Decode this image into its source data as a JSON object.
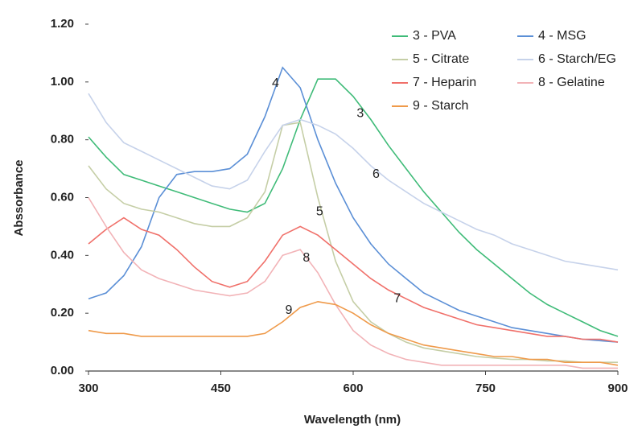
{
  "chart_data": {
    "type": "line",
    "xlabel": "Wavelength (nm)",
    "ylabel": "Abssorbance",
    "x": [
      300,
      320,
      340,
      360,
      380,
      400,
      420,
      440,
      460,
      480,
      500,
      520,
      540,
      560,
      580,
      600,
      620,
      640,
      660,
      680,
      700,
      720,
      740,
      760,
      780,
      800,
      820,
      840,
      860,
      880,
      900
    ],
    "series": [
      {
        "name": "3 - PVA",
        "color": "#3fbb78",
        "values": [
          0.81,
          0.74,
          0.68,
          0.66,
          0.64,
          0.62,
          0.6,
          0.58,
          0.56,
          0.55,
          0.58,
          0.7,
          0.87,
          1.01,
          1.01,
          0.95,
          0.87,
          0.78,
          0.7,
          0.62,
          0.55,
          0.48,
          0.42,
          0.37,
          0.32,
          0.27,
          0.23,
          0.2,
          0.17,
          0.14,
          0.12
        ]
      },
      {
        "name": "4 - MSG",
        "color": "#5b8fd6",
        "values": [
          0.25,
          0.27,
          0.33,
          0.43,
          0.6,
          0.68,
          0.69,
          0.69,
          0.7,
          0.75,
          0.88,
          1.05,
          0.98,
          0.8,
          0.65,
          0.53,
          0.44,
          0.37,
          0.32,
          0.27,
          0.24,
          0.21,
          0.19,
          0.17,
          0.15,
          0.14,
          0.13,
          0.12,
          0.11,
          0.105,
          0.1
        ]
      },
      {
        "name": "5 - Citrate",
        "color": "#c5cea6",
        "values": [
          0.71,
          0.63,
          0.58,
          0.56,
          0.55,
          0.53,
          0.51,
          0.5,
          0.5,
          0.53,
          0.62,
          0.85,
          0.86,
          0.6,
          0.38,
          0.24,
          0.17,
          0.13,
          0.1,
          0.08,
          0.07,
          0.06,
          0.05,
          0.045,
          0.04,
          0.04,
          0.035,
          0.035,
          0.03,
          0.03,
          0.03
        ]
      },
      {
        "name": "6 - Starch/EG",
        "color": "#c6d2ea",
        "values": [
          0.96,
          0.86,
          0.79,
          0.76,
          0.73,
          0.7,
          0.67,
          0.64,
          0.63,
          0.66,
          0.76,
          0.85,
          0.87,
          0.85,
          0.82,
          0.77,
          0.71,
          0.66,
          0.62,
          0.58,
          0.55,
          0.52,
          0.49,
          0.47,
          0.44,
          0.42,
          0.4,
          0.38,
          0.37,
          0.36,
          0.35
        ]
      },
      {
        "name": "7 - Heparin",
        "color": "#f0706a",
        "values": [
          0.44,
          0.49,
          0.53,
          0.49,
          0.47,
          0.42,
          0.36,
          0.31,
          0.29,
          0.31,
          0.38,
          0.47,
          0.5,
          0.47,
          0.42,
          0.37,
          0.32,
          0.28,
          0.25,
          0.22,
          0.2,
          0.18,
          0.16,
          0.15,
          0.14,
          0.13,
          0.12,
          0.12,
          0.11,
          0.11,
          0.1
        ]
      },
      {
        "name": "8 - Gelatine",
        "color": "#f2b3b7",
        "values": [
          0.6,
          0.5,
          0.41,
          0.35,
          0.32,
          0.3,
          0.28,
          0.27,
          0.26,
          0.27,
          0.31,
          0.4,
          0.42,
          0.34,
          0.23,
          0.14,
          0.09,
          0.06,
          0.04,
          0.03,
          0.02,
          0.02,
          0.02,
          0.02,
          0.02,
          0.02,
          0.02,
          0.02,
          0.01,
          0.01,
          0.01
        ]
      },
      {
        "name": "9 - Starch",
        "color": "#ef9a4a",
        "values": [
          0.14,
          0.13,
          0.13,
          0.12,
          0.12,
          0.12,
          0.12,
          0.12,
          0.12,
          0.12,
          0.13,
          0.17,
          0.22,
          0.24,
          0.23,
          0.2,
          0.16,
          0.13,
          0.11,
          0.09,
          0.08,
          0.07,
          0.06,
          0.05,
          0.05,
          0.04,
          0.04,
          0.03,
          0.03,
          0.03,
          0.02
        ]
      }
    ],
    "annotations": [
      {
        "text": "3",
        "x": 608,
        "y": 0.89
      },
      {
        "text": "4",
        "x": 512,
        "y": 0.995
      },
      {
        "text": "6",
        "x": 626,
        "y": 0.68
      },
      {
        "text": "5",
        "x": 562,
        "y": 0.55
      },
      {
        "text": "8",
        "x": 547,
        "y": 0.39
      },
      {
        "text": "7",
        "x": 650,
        "y": 0.25
      },
      {
        "text": "9",
        "x": 527,
        "y": 0.21
      }
    ],
    "xlim": [
      300,
      900
    ],
    "xticks": [
      300,
      450,
      600,
      750,
      900
    ],
    "ylim": [
      0,
      1.2
    ],
    "yticks": [
      {
        "value": 0,
        "label": "0.00"
      },
      {
        "value": 0.2,
        "label": "0.20"
      },
      {
        "value": 0.4,
        "label": "0.40"
      },
      {
        "value": 0.6,
        "label": "0.60"
      },
      {
        "value": 0.8,
        "label": "0.80"
      },
      {
        "value": 1,
        "label": "1.00"
      },
      {
        "value": 1.2,
        "label": "1.20"
      }
    ],
    "grid": false,
    "legend": "top-right"
  }
}
